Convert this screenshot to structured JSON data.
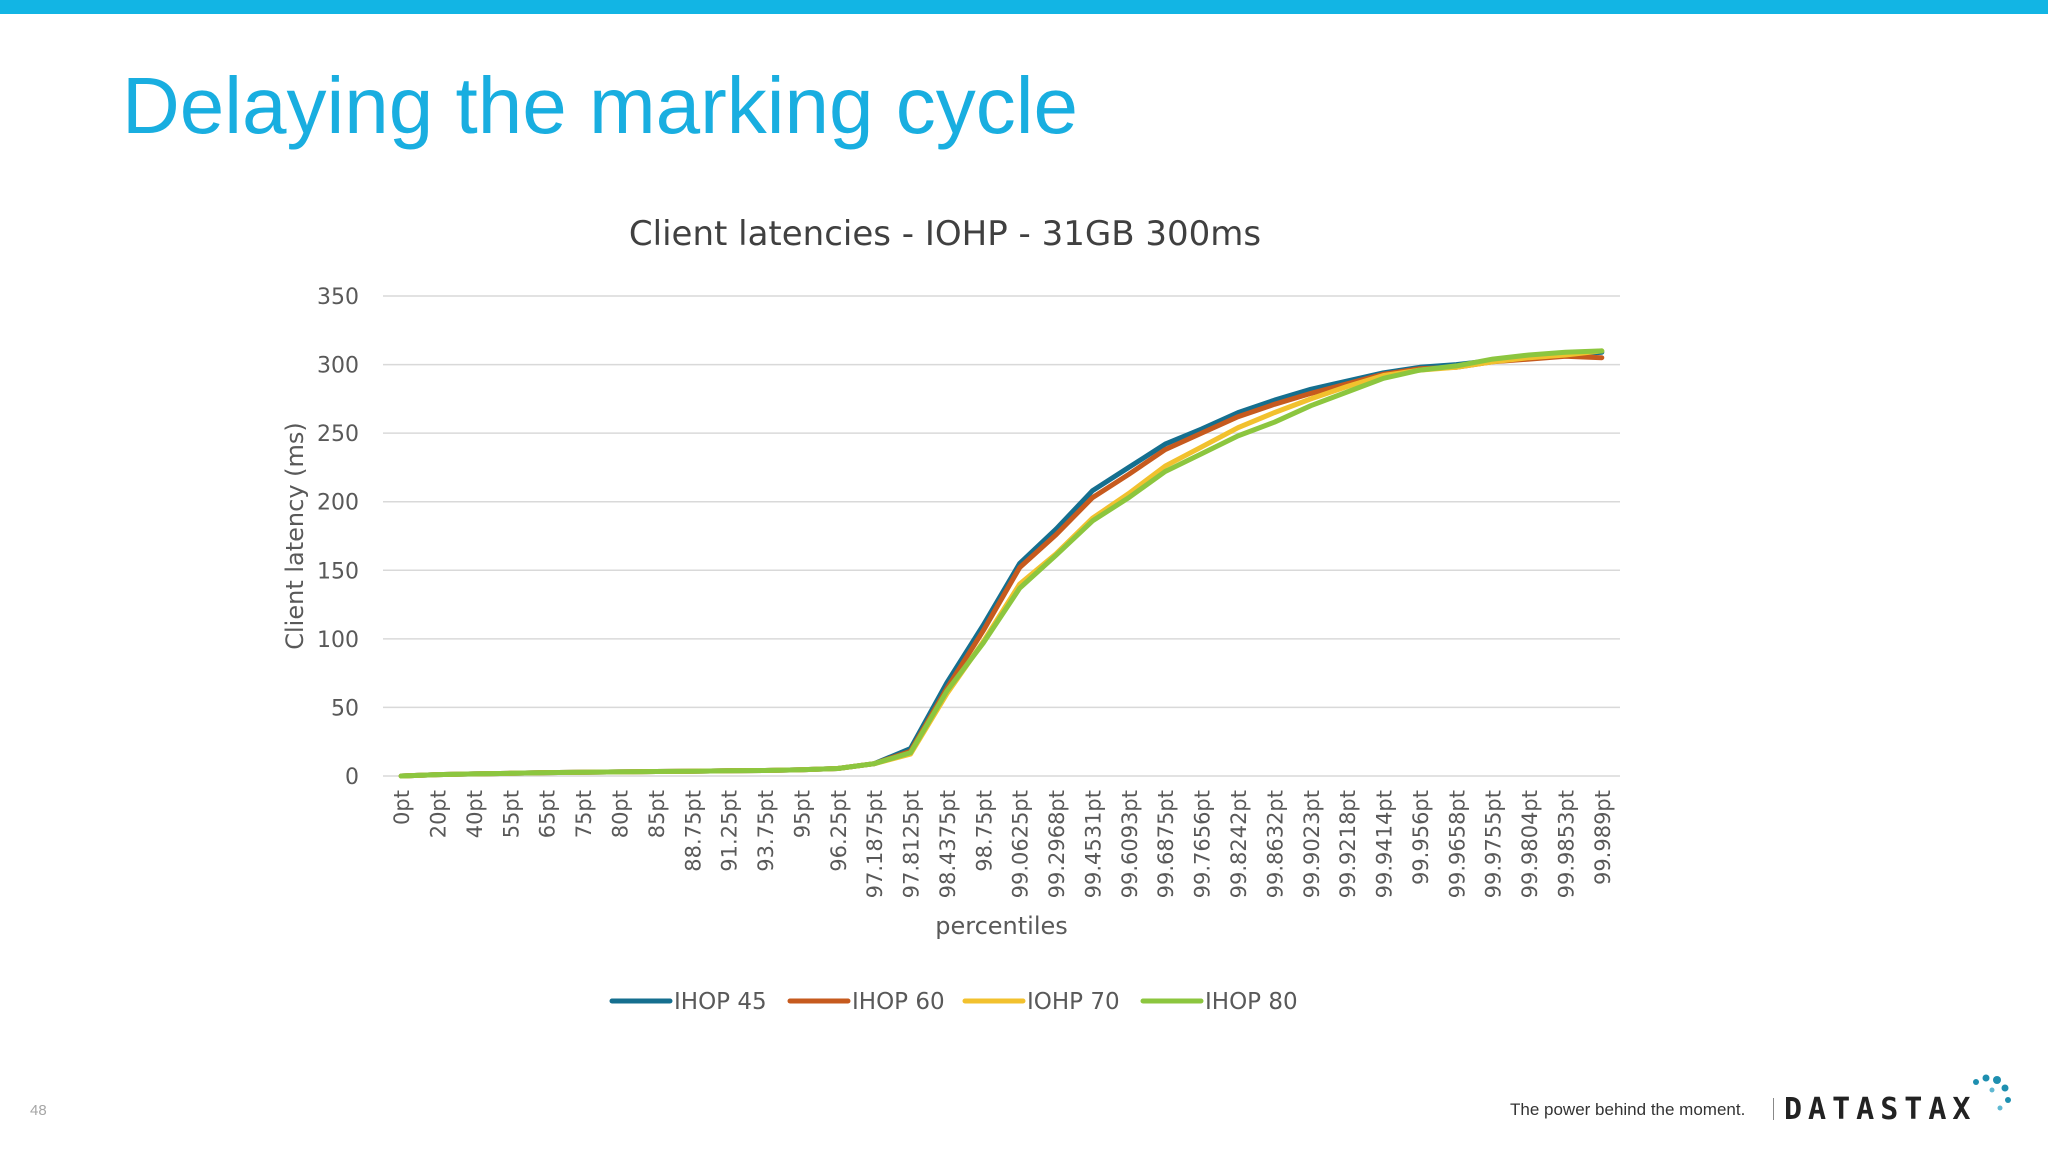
{
  "slide": {
    "title": "Delaying the marking cycle",
    "page_number": "48",
    "tagline": "The power behind the moment.",
    "brand": "DATASTAX",
    "accent_color": "#12b5e4"
  },
  "chart_data": {
    "type": "line",
    "title": "Client latencies  - IOHP - 31GB 300ms",
    "xlabel": "percentiles",
    "ylabel": "Client latency (ms)",
    "ylim": [
      0,
      350
    ],
    "yticks": [
      0,
      50,
      100,
      150,
      200,
      250,
      300,
      350
    ],
    "grid": true,
    "legend_position": "bottom",
    "categories": [
      "0pt",
      "20pt",
      "40pt",
      "55pt",
      "65pt",
      "75pt",
      "80pt",
      "85pt",
      "88.75pt",
      "91.25pt",
      "93.75pt",
      "95pt",
      "96.25pt",
      "97.1875pt",
      "97.8125pt",
      "98.4375pt",
      "98.75pt",
      "99.0625pt",
      "99.2968pt",
      "99.4531pt",
      "99.6093pt",
      "99.6875pt",
      "99.7656pt",
      "99.8242pt",
      "99.8632pt",
      "99.9023pt",
      "99.9218pt",
      "99.9414pt",
      "99.956pt",
      "99.9658pt",
      "99.9755pt",
      "99.9804pt",
      "99.9853pt",
      "99.989pt"
    ],
    "series": [
      {
        "name": "IHOP 45",
        "color": "#156f8f",
        "values": [
          0,
          1,
          1.5,
          2,
          2.5,
          2.8,
          3,
          3.3,
          3.5,
          3.8,
          4,
          4.5,
          5.5,
          9,
          20,
          68,
          110,
          155,
          180,
          208,
          225,
          242,
          253,
          265,
          274,
          282,
          288,
          294,
          298,
          300,
          303,
          305,
          307,
          309
        ]
      },
      {
        "name": "IHOP 60",
        "color": "#c65a1e",
        "values": [
          0,
          1,
          1.5,
          2,
          2.5,
          2.8,
          3,
          3.3,
          3.5,
          3.8,
          4,
          4.5,
          5.5,
          9,
          18,
          64,
          106,
          152,
          176,
          203,
          220,
          238,
          250,
          262,
          271,
          279,
          286,
          293,
          297,
          298,
          302,
          304,
          306,
          305
        ]
      },
      {
        "name": "IOHP 70",
        "color": "#f2c12e",
        "values": [
          0,
          1,
          1.5,
          2,
          2.5,
          2.8,
          3,
          3.3,
          3.5,
          3.8,
          4,
          4.5,
          5.5,
          9,
          16,
          60,
          98,
          140,
          162,
          188,
          206,
          226,
          240,
          254,
          265,
          275,
          284,
          292,
          296,
          298,
          302,
          305,
          307,
          310
        ]
      },
      {
        "name": "IHOP 80",
        "color": "#8cc63f",
        "values": [
          0,
          1,
          1.5,
          2,
          2.5,
          2.8,
          3,
          3.3,
          3.5,
          3.8,
          4,
          4.5,
          5.5,
          9,
          17,
          62,
          97,
          137,
          161,
          186,
          203,
          222,
          235,
          248,
          258,
          270,
          280,
          290,
          296,
          299,
          304,
          307,
          309,
          310
        ]
      }
    ]
  }
}
